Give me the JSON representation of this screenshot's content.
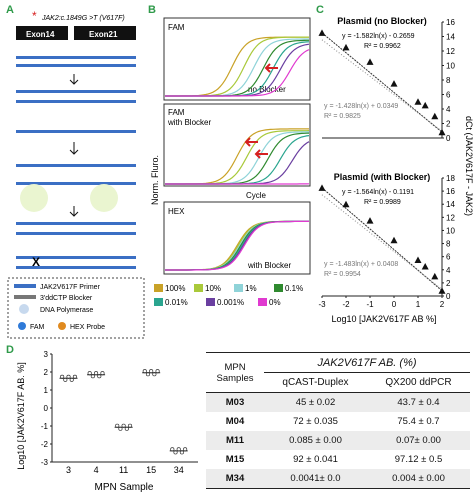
{
  "panel_labels": {
    "a": "A",
    "b": "B",
    "c": "C",
    "d": "D"
  },
  "panelA": {
    "mutation_label": "JAK2:c.1849G >T (V617F)",
    "exon14": "Exon14",
    "exon21": "Exon21",
    "legend": {
      "primer": "JAK2V617F Primer",
      "blocker": "3'ddCTP Blocker",
      "polymerase": "DNA Polymerase",
      "fam": "FAM",
      "hex": "HEX Probe"
    }
  },
  "panelB": {
    "fam_label": "FAM",
    "no_blocker": "no Blocker",
    "fam_with_blocker": "FAM\nwith Blocker",
    "hex_label": "HEX",
    "with_blocker": "with Blocker",
    "ylabel": "Norm. Fluro.",
    "xlabel": "Cycle",
    "legend": [
      {
        "label": "100%",
        "color": "#c9a227"
      },
      {
        "label": "10%",
        "color": "#a9c93a"
      },
      {
        "label": "1%",
        "color": "#8fd3d8"
      },
      {
        "label": "0.1%",
        "color": "#2f8a2f"
      },
      {
        "label": "0.01%",
        "color": "#2aa58f"
      },
      {
        "label": "0.001%",
        "color": "#6a3fa0"
      },
      {
        "label": "0%",
        "color": "#e03ad0"
      }
    ]
  },
  "panelC": {
    "ylabel": "dCt (JAK2V617F - JAK2)",
    "xlabel": "Log10 [JAK2V617F AB %]",
    "chart_data": [
      {
        "type": "scatter",
        "title": "Plasmid (no Blocker)",
        "x": [
          -3,
          -2,
          -1,
          0,
          1,
          1.3,
          1.7,
          2
        ],
        "y": [
          14.5,
          12.5,
          10.5,
          7.5,
          5,
          4.5,
          3,
          0.8
        ],
        "eq_main": "y = -1.582ln(x) - 0.2659",
        "r2_main": "R² = 0.9962",
        "eq_gray": "y = -1.428ln(x) + 0.0349",
        "r2_gray": "R² = 0.9825",
        "xlim": [
          -3,
          2
        ],
        "ylim": [
          0,
          16
        ],
        "yticks": [
          0,
          2,
          4,
          6,
          8,
          10,
          12,
          14,
          16
        ],
        "xticks": [
          -3,
          -2,
          -1,
          0,
          1,
          2
        ]
      },
      {
        "type": "scatter",
        "title": "Plasmid (with Blocker)",
        "x": [
          -3,
          -2,
          -1,
          0,
          1,
          1.3,
          1.7,
          2
        ],
        "y": [
          16.5,
          14,
          11.5,
          8.5,
          5.5,
          4.5,
          3,
          0.8
        ],
        "eq_main": "y = -1.564ln(x) - 0.1191",
        "r2_main": "R² = 0.9989",
        "eq_gray": "y = -1.483ln(x) + 0.0408",
        "r2_gray": "R² = 0.9954",
        "xlim": [
          -3,
          2
        ],
        "ylim": [
          0,
          18
        ],
        "yticks": [
          0,
          2,
          4,
          6,
          8,
          10,
          12,
          14,
          16,
          18
        ],
        "xticks": [
          -3,
          -2,
          -1,
          0,
          1,
          2
        ]
      }
    ]
  },
  "panelD": {
    "ylabel": "Log10 [JAK2V617F AB. %]",
    "xlabel": "MPN Sample",
    "chart_data": {
      "type": "scatter",
      "categories": [
        "3",
        "4",
        "11",
        "15",
        "34"
      ],
      "values": [
        1.65,
        1.85,
        -1.07,
        1.96,
        -2.38
      ],
      "ylim": [
        -3,
        3
      ],
      "yticks": [
        -3,
        -2,
        -1,
        0,
        1,
        2,
        3
      ]
    }
  },
  "table": {
    "title": "JAK2V617F AB. (%)",
    "col0": "MPN\nSamples",
    "col1": "qCAST-Duplex",
    "col2": "QX200 ddPCR",
    "rows": [
      {
        "sample": "M03",
        "q": "45 ± 0.02",
        "d": "43.7 ± 0.4"
      },
      {
        "sample": "M04",
        "q": "72 ± 0.035",
        "d": "75.4 ± 0.7"
      },
      {
        "sample": "M11",
        "q": "0.085 ± 0.00",
        "d": "0.07± 0.00"
      },
      {
        "sample": "M15",
        "q": "92 ± 0.041",
        "d": "97.12 ± 0.5"
      },
      {
        "sample": "M34",
        "q": "0.0041± 0.0",
        "d": "0.004 ± 0.00"
      }
    ]
  }
}
